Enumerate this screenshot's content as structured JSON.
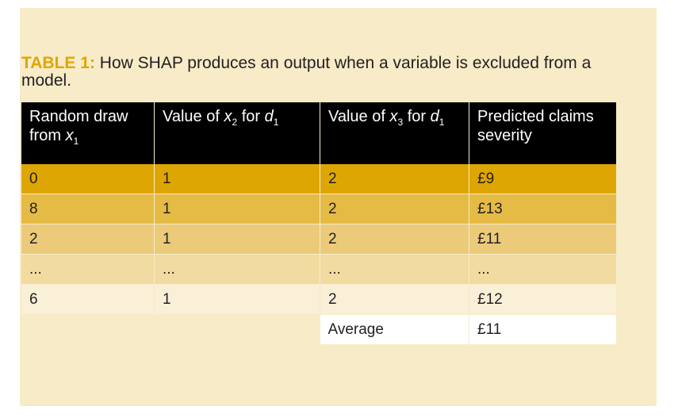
{
  "caption": {
    "label": "TABLE 1:",
    "text": "How SHAP produces an output when a variable is excluded from a model."
  },
  "table": {
    "headers": [
      {
        "pre": "Random draw from ",
        "var": "x",
        "sub": "1",
        "mid": "",
        "var2": "",
        "sub2": ""
      },
      {
        "pre": "Value of ",
        "var": "x",
        "sub": "2",
        "mid": " for ",
        "var2": "d",
        "sub2": "1"
      },
      {
        "pre": "Value of ",
        "var": "x",
        "sub": "3",
        "mid": " for ",
        "var2": "d",
        "sub2": "1"
      },
      {
        "pre": "Predicted claims severity",
        "var": "",
        "sub": "",
        "mid": "",
        "var2": "",
        "sub2": ""
      }
    ],
    "rows": [
      [
        "0",
        "1",
        "2",
        "£9"
      ],
      [
        "8",
        "1",
        "2",
        "£13"
      ],
      [
        "2",
        "1",
        "2",
        "£11"
      ],
      [
        "...",
        "...",
        "...",
        "..."
      ],
      [
        "6",
        "1",
        "2",
        "£12"
      ]
    ],
    "average_label": "Average",
    "average_value": "£11"
  },
  "colors": {
    "label": "#dfa600",
    "background": "#f7ebc8",
    "header": "#000000",
    "row_shades": [
      "#dea602",
      "#e5bb45",
      "#ebcb7a",
      "#f2dba1",
      "#faefd7"
    ]
  }
}
